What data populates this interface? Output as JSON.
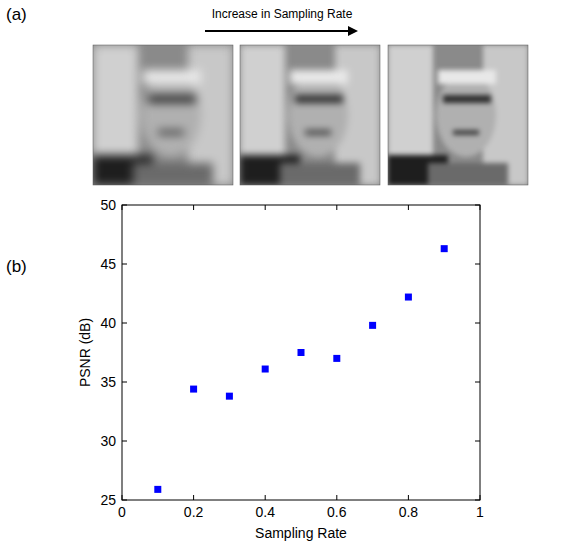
{
  "figure": {
    "panel_labels": [
      "(a)",
      "(b)"
    ],
    "arrow_label": "Increase in Sampling Rate"
  },
  "chart_data": {
    "type": "scatter",
    "x_label": "Sampling Rate",
    "y_label": "PSNR (dB)",
    "x": [
      0.1,
      0.2,
      0.3,
      0.4,
      0.5,
      0.6,
      0.7,
      0.8,
      0.9
    ],
    "values": [
      25.9,
      34.4,
      33.8,
      36.1,
      37.5,
      37.0,
      39.8,
      42.2,
      46.3
    ],
    "color": "#0000ff",
    "marker": "square",
    "xlim": [
      0,
      1
    ],
    "xticks": [
      0,
      0.2,
      0.4,
      0.6,
      0.8,
      1
    ],
    "ylim": [
      25,
      50
    ],
    "yticks": [
      25,
      30,
      35,
      40,
      45,
      50
    ],
    "grid": false
  }
}
